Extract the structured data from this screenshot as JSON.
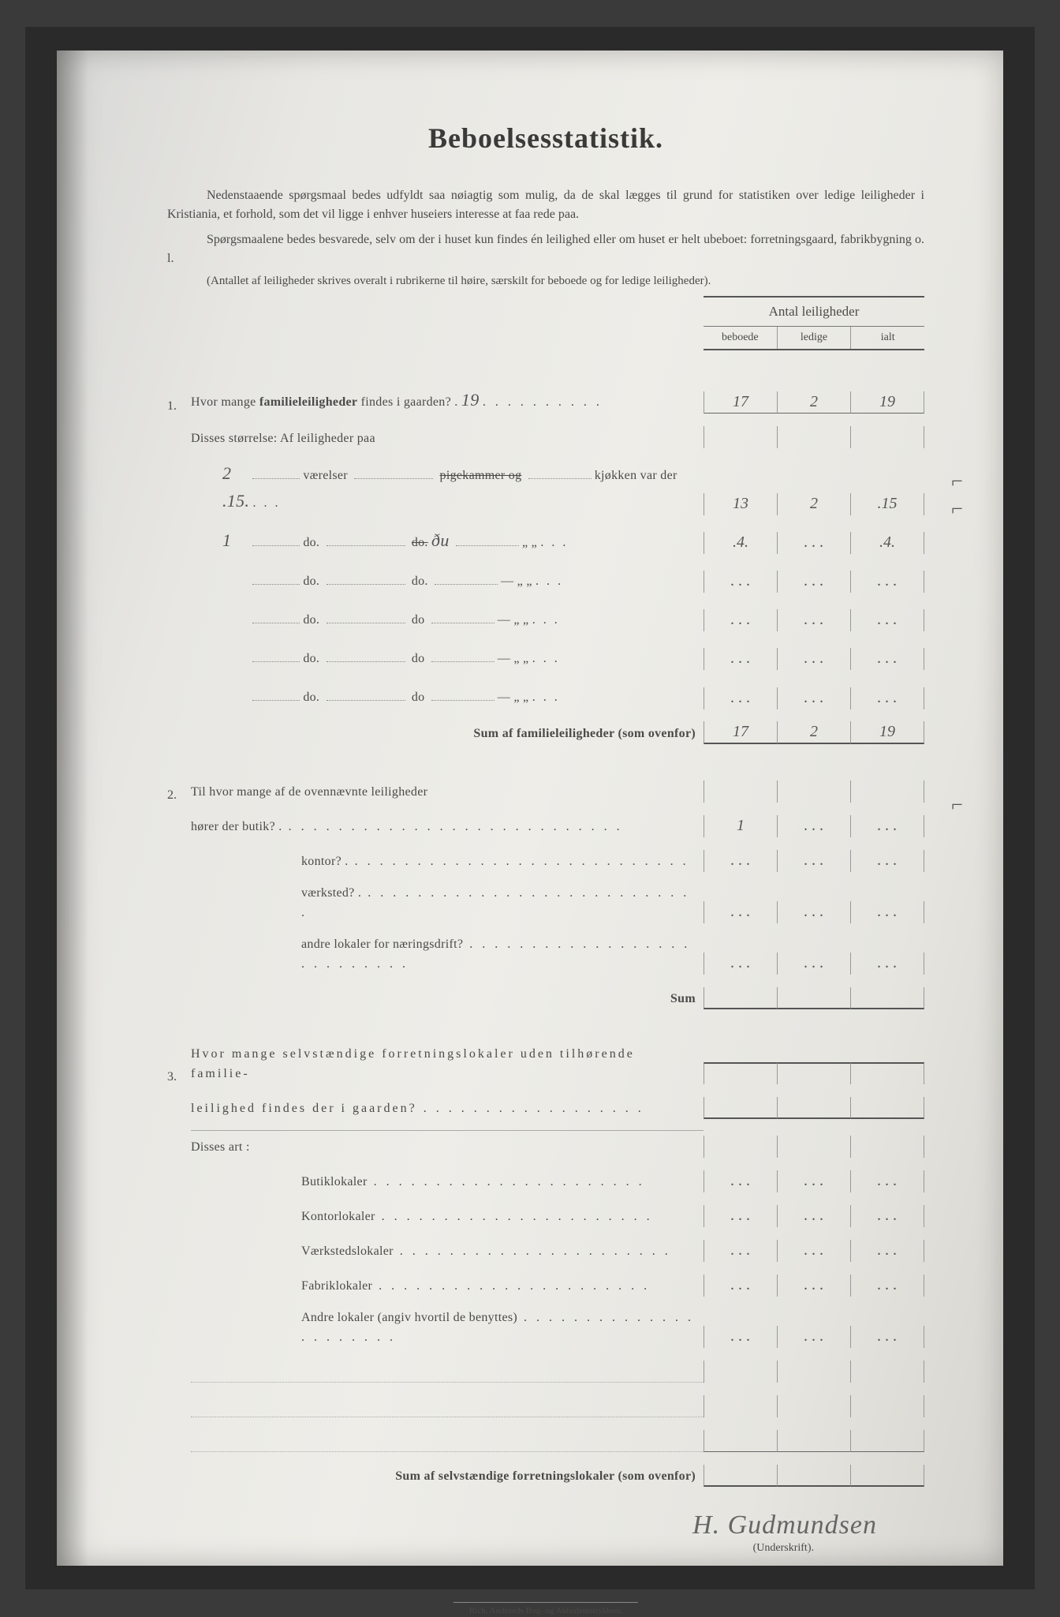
{
  "title": "Beboelsesstatistik.",
  "intro1": "Nedenstaaende spørgsmaal bedes udfyldt saa nøiagtig som mulig, da de skal lægges til grund for statistiken over ledige leiligheder i Kristiania, et forhold, som det vil ligge i enhver huseiers interesse at faa rede paa.",
  "intro2": "Spørgsmaalene bedes besvarede, selv om der i huset kun findes én leilighed eller om huset er helt ubeboet: forretningsgaard, fabrikbygning o. l.",
  "intro3": "(Antallet af leiligheder skrives overalt i rubrikerne til høire, særskilt for beboede og for ledige leiligheder).",
  "header": {
    "title": "Antal leiligheder",
    "col1": "beboede",
    "col2": "ledige",
    "col3": "ialt"
  },
  "q1": {
    "num": "1.",
    "line1a": "Hvor mange ",
    "line1b": "familieleiligheder",
    "line1c": " findes i gaarden? .",
    "hw_total": "19",
    "vals_top": {
      "c1": "17",
      "c2": "2",
      "c3": "19"
    },
    "line2": "Disses størrelse:   Af leiligheder paa",
    "rows": [
      {
        "hw_n": "2",
        "label1": "værelser",
        "strike": "pigekammer og",
        "label2": "kjøkken var der",
        "hw_end": ".15.",
        "c1": "13",
        "c2": "2",
        "c3": ".15"
      },
      {
        "hw_n": "1",
        "label1": "do.",
        "strike": "do.",
        "hw_mid": "ðu",
        "label2": "„   „",
        "hw_end": "",
        "c1": ".4.",
        "c2": "",
        "c3": ".4."
      },
      {
        "hw_n": "",
        "label1": "do.",
        "strike": "",
        "mid": "do.",
        "label2": "—    „   „",
        "c1": "",
        "c2": "",
        "c3": ""
      },
      {
        "hw_n": "",
        "label1": "do.",
        "strike": "",
        "mid": "do",
        "label2": "—    „   „",
        "c1": "",
        "c2": "",
        "c3": ""
      },
      {
        "hw_n": "",
        "label1": "do.",
        "strike": "",
        "mid": "do",
        "label2": "—    „   „",
        "c1": "",
        "c2": "",
        "c3": ""
      },
      {
        "hw_n": "",
        "label1": "do.",
        "strike": "",
        "mid": "do",
        "label2": "—    „   „",
        "c1": "",
        "c2": "",
        "c3": ""
      }
    ],
    "sum_label": "Sum af familieleiligheder (som ovenfor)",
    "sum": {
      "c1": "17",
      "c2": "2",
      "c3": "19"
    }
  },
  "q2": {
    "num": "2.",
    "line1": "Til hvor mange af de ovennævnte leiligheder",
    "rows": [
      {
        "label": "hører der butik? .",
        "c1": "1",
        "c2": "",
        "c3": ""
      },
      {
        "label": "kontor? .",
        "c1": "",
        "c2": "",
        "c3": ""
      },
      {
        "label": "værksted? .",
        "c1": "",
        "c2": "",
        "c3": ""
      },
      {
        "label": "andre lokaler for næringsdrift?",
        "c1": "",
        "c2": "",
        "c3": ""
      }
    ],
    "sum_label": "Sum"
  },
  "q3": {
    "num": "3.",
    "line1": "Hvor mange selvstændige forretningslokaler uden tilhørende familie-",
    "line2": "leilighed findes der i gaarden?",
    "art_label": "Disses art :",
    "rows": [
      {
        "label": "Butiklokaler"
      },
      {
        "label": "Kontorlokaler"
      },
      {
        "label": "Værkstedslokaler"
      },
      {
        "label": "Fabriklokaler"
      },
      {
        "label": "Andre lokaler (angiv hvortil de benyttes)"
      }
    ],
    "sum_label": "Sum af selvstændige forretningslokaler (som ovenfor)"
  },
  "signature": "H. Gudmundsen",
  "sig_label": "(Underskrift).",
  "printer": "Rich. Andvords Bog- og Aktsidentstrykkeri.",
  "margin_marks": {
    "m1": "⌐",
    "m2": "⌐",
    "m3": "⌐"
  }
}
